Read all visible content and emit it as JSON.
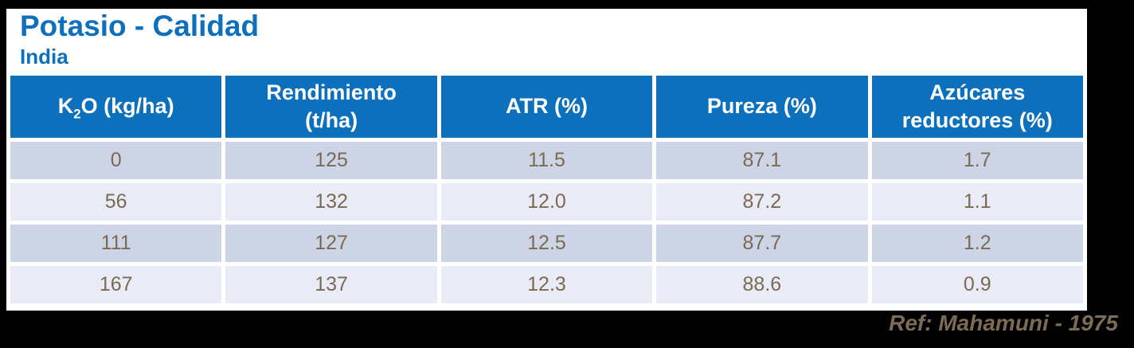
{
  "header": {
    "title": "Potasio - Calidad",
    "subtitle": "India"
  },
  "table": {
    "header": {
      "k2o": {
        "base": "K",
        "sub": "2",
        "rest": "O (kg/ha)"
      },
      "cols": [
        "Rendimiento\n(t/ha)",
        "ATR (%)",
        "Pureza (%)",
        "Azúcares\nreductores (%)"
      ]
    },
    "rows": [
      [
        "0",
        "125",
        "11.5",
        "87.1",
        "1.7"
      ],
      [
        "56",
        "132",
        "12.0",
        "87.2",
        "1.1"
      ],
      [
        "111",
        "127",
        "12.5",
        "87.7",
        "1.2"
      ],
      [
        "167",
        "137",
        "12.3",
        "88.6",
        "0.9"
      ]
    ]
  },
  "footer": {
    "reference": "Ref: Mahamuni - 1975"
  },
  "colors": {
    "accent_blue": "#0c70bc",
    "row_dark": "#ccd4e6",
    "row_light": "#e9ecf6",
    "data_text": "#7a6a52",
    "reference_text": "#7d6c55",
    "frame_background": "#000000"
  },
  "chart_data": {
    "type": "table",
    "title": "Potasio - Calidad",
    "subtitle": "India",
    "columns": [
      "K2O (kg/ha)",
      "Rendimiento (t/ha)",
      "ATR (%)",
      "Pureza (%)",
      "Azúcares reductores (%)"
    ],
    "rows": [
      [
        0,
        125,
        11.5,
        87.1,
        1.7
      ],
      [
        56,
        132,
        12.0,
        87.2,
        1.1
      ],
      [
        111,
        127,
        12.5,
        87.7,
        1.2
      ],
      [
        167,
        137,
        12.3,
        88.6,
        0.9
      ]
    ],
    "annotations": [
      "Ref: Mahamuni - 1975"
    ]
  }
}
